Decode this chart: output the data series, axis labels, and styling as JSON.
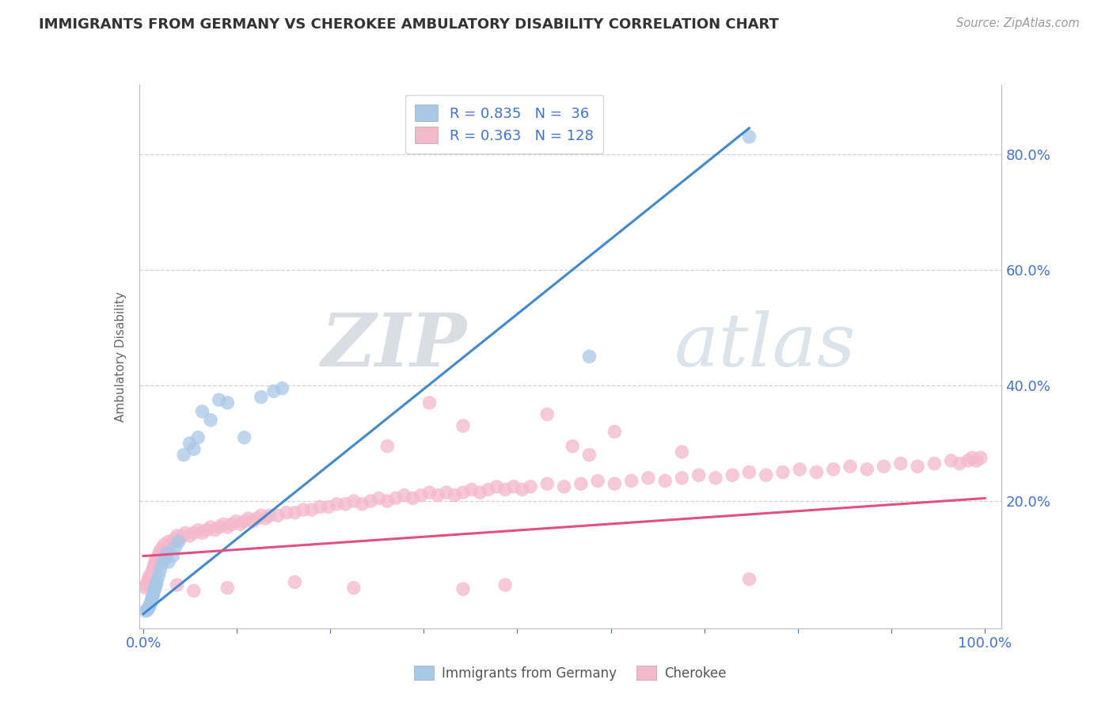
{
  "title": "IMMIGRANTS FROM GERMANY VS CHEROKEE AMBULATORY DISABILITY CORRELATION CHART",
  "source": "Source: ZipAtlas.com",
  "ylabel": "Ambulatory Disability",
  "series1_label": "Immigrants from Germany",
  "series2_label": "Cherokee",
  "series1_R": 0.835,
  "series1_N": 36,
  "series2_R": 0.363,
  "series2_N": 128,
  "series1_color": "#a8c8e8",
  "series2_color": "#f4b8cb",
  "line1_color": "#4488cc",
  "line2_color": "#e05080",
  "watermark_zip": "ZIP",
  "watermark_atlas": "atlas",
  "background_color": "#ffffff",
  "grid_color": "#cccccc",
  "text_color": "#4472c4",
  "title_color": "#333333",
  "source_color": "#999999",
  "ylabel_color": "#666666",
  "legend_color": "#4472c4",
  "xlim": [
    -0.005,
    1.02
  ],
  "ylim": [
    -0.02,
    0.92
  ],
  "yticks": [
    0.2,
    0.4,
    0.6,
    0.8
  ],
  "ytick_labels": [
    "20.0%",
    "40.0%",
    "60.0%",
    "80.0%"
  ],
  "xtick_positions": [
    0.0,
    0.111,
    0.222,
    0.333,
    0.444,
    0.556,
    0.667,
    0.778,
    0.889,
    1.0
  ],
  "blue_line_x": [
    0.0,
    0.72
  ],
  "blue_line_y": [
    0.005,
    0.845
  ],
  "pink_line_x": [
    0.0,
    1.0
  ],
  "pink_line_y": [
    0.105,
    0.205
  ],
  "blue_x": [
    0.003,
    0.005,
    0.006,
    0.007,
    0.008,
    0.009,
    0.01,
    0.011,
    0.012,
    0.013,
    0.014,
    0.015,
    0.016,
    0.018,
    0.02,
    0.022,
    0.025,
    0.028,
    0.03,
    0.035,
    0.038,
    0.042,
    0.048,
    0.055,
    0.06,
    0.065,
    0.07,
    0.08,
    0.09,
    0.1,
    0.12,
    0.14,
    0.155,
    0.165,
    0.53,
    0.72
  ],
  "blue_y": [
    0.01,
    0.012,
    0.015,
    0.018,
    0.02,
    0.025,
    0.03,
    0.035,
    0.04,
    0.045,
    0.05,
    0.055,
    0.06,
    0.07,
    0.08,
    0.09,
    0.1,
    0.11,
    0.095,
    0.105,
    0.12,
    0.13,
    0.28,
    0.3,
    0.29,
    0.31,
    0.355,
    0.34,
    0.375,
    0.37,
    0.31,
    0.38,
    0.39,
    0.395,
    0.45,
    0.83
  ],
  "pink_x": [
    0.003,
    0.004,
    0.005,
    0.006,
    0.007,
    0.008,
    0.009,
    0.01,
    0.011,
    0.012,
    0.013,
    0.014,
    0.015,
    0.016,
    0.017,
    0.018,
    0.019,
    0.02,
    0.021,
    0.022,
    0.023,
    0.025,
    0.027,
    0.03,
    0.032,
    0.035,
    0.038,
    0.04,
    0.043,
    0.046,
    0.05,
    0.055,
    0.06,
    0.065,
    0.07,
    0.075,
    0.08,
    0.085,
    0.09,
    0.095,
    0.1,
    0.105,
    0.11,
    0.115,
    0.12,
    0.125,
    0.13,
    0.135,
    0.14,
    0.145,
    0.15,
    0.16,
    0.17,
    0.18,
    0.19,
    0.2,
    0.21,
    0.22,
    0.23,
    0.24,
    0.25,
    0.26,
    0.27,
    0.28,
    0.29,
    0.3,
    0.31,
    0.32,
    0.33,
    0.34,
    0.35,
    0.36,
    0.37,
    0.38,
    0.39,
    0.4,
    0.41,
    0.42,
    0.43,
    0.44,
    0.45,
    0.46,
    0.48,
    0.5,
    0.52,
    0.54,
    0.56,
    0.58,
    0.6,
    0.62,
    0.64,
    0.66,
    0.68,
    0.7,
    0.72,
    0.74,
    0.76,
    0.78,
    0.8,
    0.82,
    0.84,
    0.86,
    0.88,
    0.9,
    0.92,
    0.94,
    0.96,
    0.97,
    0.98,
    0.985,
    0.99,
    0.995,
    0.25,
    0.38,
    0.43,
    0.53,
    0.34,
    0.56,
    0.48,
    0.38,
    0.29,
    0.18,
    0.1,
    0.06,
    0.04,
    0.51,
    0.64,
    0.72
  ],
  "pink_y": [
    0.05,
    0.055,
    0.06,
    0.065,
    0.07,
    0.065,
    0.07,
    0.075,
    0.08,
    0.085,
    0.09,
    0.095,
    0.1,
    0.095,
    0.1,
    0.105,
    0.11,
    0.115,
    0.11,
    0.115,
    0.12,
    0.125,
    0.12,
    0.13,
    0.125,
    0.13,
    0.135,
    0.14,
    0.135,
    0.14,
    0.145,
    0.14,
    0.145,
    0.15,
    0.145,
    0.15,
    0.155,
    0.15,
    0.155,
    0.16,
    0.155,
    0.16,
    0.165,
    0.16,
    0.165,
    0.17,
    0.165,
    0.17,
    0.175,
    0.17,
    0.175,
    0.175,
    0.18,
    0.18,
    0.185,
    0.185,
    0.19,
    0.19,
    0.195,
    0.195,
    0.2,
    0.195,
    0.2,
    0.205,
    0.2,
    0.205,
    0.21,
    0.205,
    0.21,
    0.215,
    0.21,
    0.215,
    0.21,
    0.215,
    0.22,
    0.215,
    0.22,
    0.225,
    0.22,
    0.225,
    0.22,
    0.225,
    0.23,
    0.225,
    0.23,
    0.235,
    0.23,
    0.235,
    0.24,
    0.235,
    0.24,
    0.245,
    0.24,
    0.245,
    0.25,
    0.245,
    0.25,
    0.255,
    0.25,
    0.255,
    0.26,
    0.255,
    0.26,
    0.265,
    0.26,
    0.265,
    0.27,
    0.265,
    0.27,
    0.275,
    0.27,
    0.275,
    0.05,
    0.048,
    0.055,
    0.28,
    0.37,
    0.32,
    0.35,
    0.33,
    0.295,
    0.06,
    0.05,
    0.045,
    0.055,
    0.295,
    0.285,
    0.065
  ]
}
